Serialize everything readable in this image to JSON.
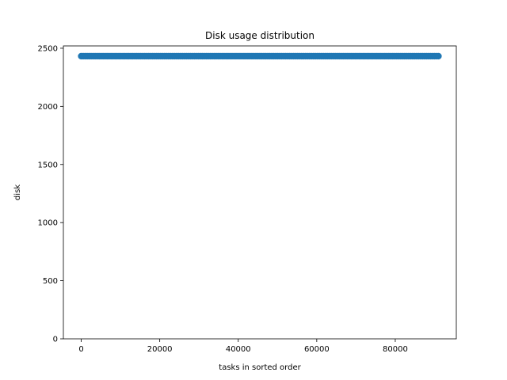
{
  "chart_data": {
    "type": "scatter",
    "title": "Disk usage distribution",
    "xlabel": "tasks in sorted order",
    "ylabel": "disk",
    "xlim": [
      -4550,
      95550
    ],
    "ylim": [
      0,
      2520
    ],
    "xticks": [
      0,
      20000,
      40000,
      60000,
      80000
    ],
    "yticks": [
      0,
      500,
      1000,
      1500,
      2000,
      2500
    ],
    "grid": false,
    "series": [
      {
        "color": "#1f77b4",
        "x_range": [
          0,
          91000
        ],
        "value": 2432
      }
    ]
  }
}
